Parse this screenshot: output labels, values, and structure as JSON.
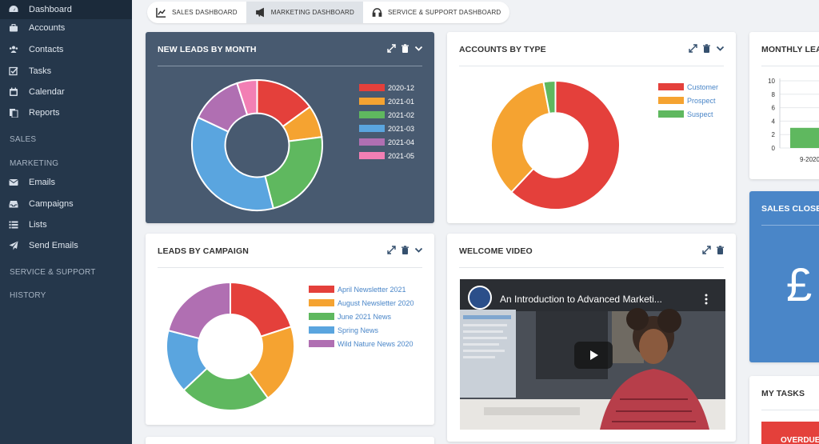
{
  "sidebar": {
    "items": [
      {
        "label": "Dashboard",
        "icon": "dashboard-icon"
      },
      {
        "label": "Accounts",
        "icon": "briefcase-icon"
      },
      {
        "label": "Contacts",
        "icon": "users-icon"
      },
      {
        "label": "Tasks",
        "icon": "checkbox-icon"
      },
      {
        "label": "Calendar",
        "icon": "calendar-icon"
      },
      {
        "label": "Reports",
        "icon": "reports-icon"
      },
      {
        "label": "Emails",
        "icon": "envelope-icon"
      },
      {
        "label": "Campaigns",
        "icon": "inbox-icon"
      },
      {
        "label": "Lists",
        "icon": "list-icon"
      },
      {
        "label": "Send Emails",
        "icon": "send-icon"
      }
    ],
    "sections": [
      "SALES",
      "MARKETING",
      "SERVICE & SUPPORT",
      "HISTORY"
    ]
  },
  "tabs": [
    {
      "label": "SALES DASHBOARD",
      "icon": "line-chart-icon"
    },
    {
      "label": "MARKETING DASHBOARD",
      "icon": "megaphone-icon"
    },
    {
      "label": "SERVICE & SUPPORT DASHBOARD",
      "icon": "headset-icon"
    }
  ],
  "cards": {
    "new_leads": {
      "title": "NEW LEADS BY MONTH"
    },
    "accounts": {
      "title": "ACCOUNTS BY TYPE"
    },
    "monthly": {
      "title": "MONTHLY LEADS"
    },
    "sales_closed": {
      "title": "SALES CLOSED",
      "symbol": "£"
    },
    "leads_campaign": {
      "title": "LEADS BY CAMPAIGN"
    },
    "welcome": {
      "title": "WELCOME VIDEO",
      "video_title": "An Introduction to Advanced Marketi..."
    },
    "my_tasks": {
      "title": "MY TASKS",
      "badge": "OVERDUE"
    }
  },
  "colors": {
    "sidebar": "#25374b",
    "dark_card": "#485a70",
    "blue_card": "#4a86c8",
    "red": "#e4403b",
    "orange": "#f5a331",
    "green": "#5fb85f",
    "blue": "#5aa5df",
    "purple": "#b06fb2",
    "pink": "#f27fb4"
  },
  "chart_data": [
    {
      "type": "pie",
      "title": "NEW LEADS BY MONTH",
      "categories": [
        "2020-12",
        "2021-01",
        "2021-02",
        "2021-03",
        "2021-04",
        "2021-05"
      ],
      "values": [
        15,
        8,
        23,
        36,
        13,
        5
      ],
      "colors": [
        "#e4403b",
        "#f5a331",
        "#5fb85f",
        "#5aa5df",
        "#b06fb2",
        "#f27fb4"
      ],
      "legend": "right"
    },
    {
      "type": "pie",
      "title": "ACCOUNTS BY TYPE",
      "categories": [
        "Customer",
        "Prospect",
        "Suspect"
      ],
      "values": [
        62,
        35,
        3
      ],
      "colors": [
        "#e4403b",
        "#f5a331",
        "#5fb85f"
      ],
      "legend": "right"
    },
    {
      "type": "pie",
      "title": "LEADS BY CAMPAIGN",
      "categories": [
        "April Newsletter 2021",
        "August Newsletter 2020",
        "June 2021 News",
        "Spring News",
        "Wild Nature News 2020"
      ],
      "values": [
        20,
        20,
        23,
        16,
        21
      ],
      "colors": [
        "#e4403b",
        "#f5a331",
        "#5fb85f",
        "#5aa5df",
        "#b06fb2"
      ],
      "legend": "right"
    },
    {
      "type": "bar",
      "title": "MONTHLY LEADS",
      "categories": [
        "9-2020"
      ],
      "values": [
        3
      ],
      "ylim": [
        0,
        10
      ],
      "yticks": [
        "0",
        "2",
        "4",
        "6",
        "8",
        "10"
      ],
      "colors": [
        "#5fb85f"
      ]
    }
  ]
}
